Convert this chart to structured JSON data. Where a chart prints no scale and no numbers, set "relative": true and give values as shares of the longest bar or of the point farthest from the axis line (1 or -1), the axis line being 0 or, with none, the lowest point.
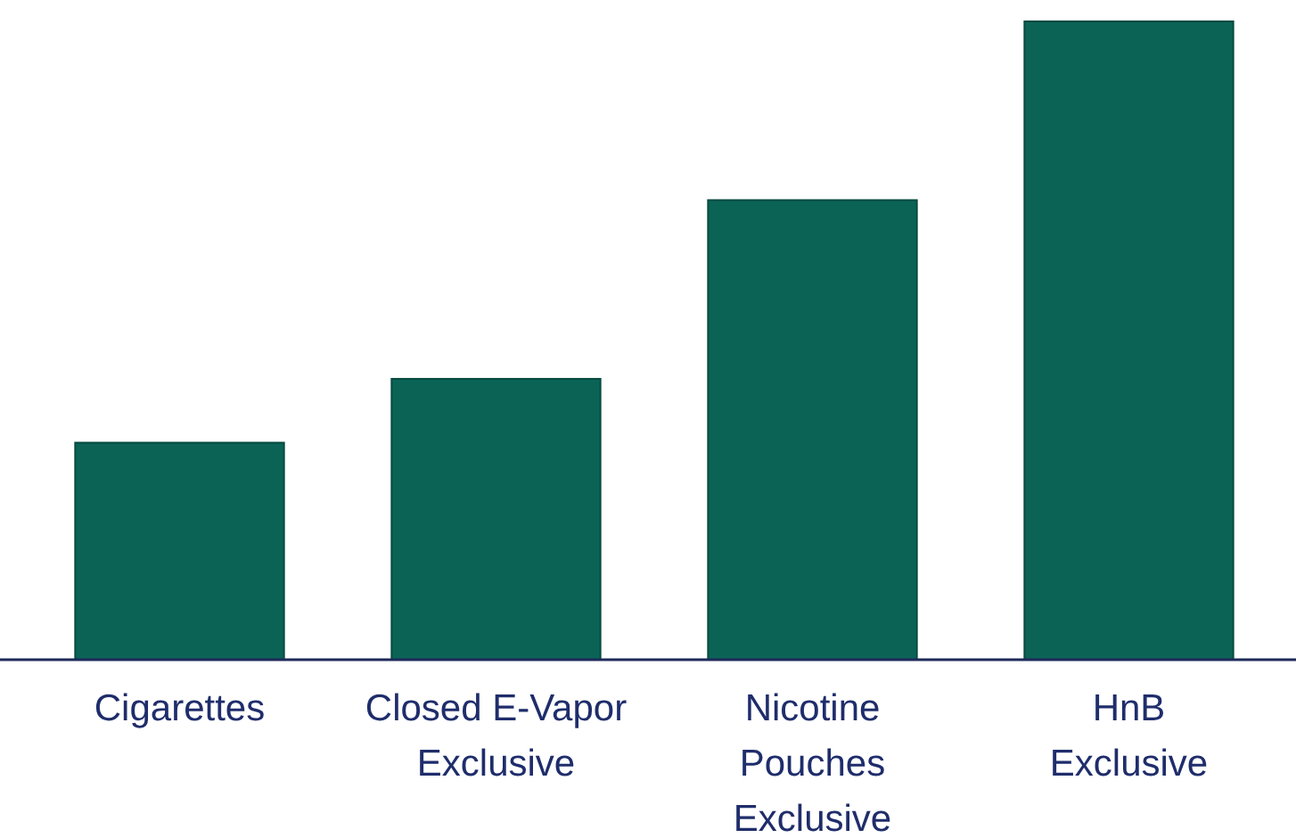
{
  "chart_data": {
    "type": "bar",
    "relative": true,
    "categories": [
      "Cigarettes",
      "Closed E-Vapor\nExclusive",
      "Nicotine\nPouches\nExclusive",
      "HnB\nExclusive"
    ],
    "values": [
      0.34,
      0.44,
      0.72,
      1
    ],
    "color": "#0b6356"
  }
}
